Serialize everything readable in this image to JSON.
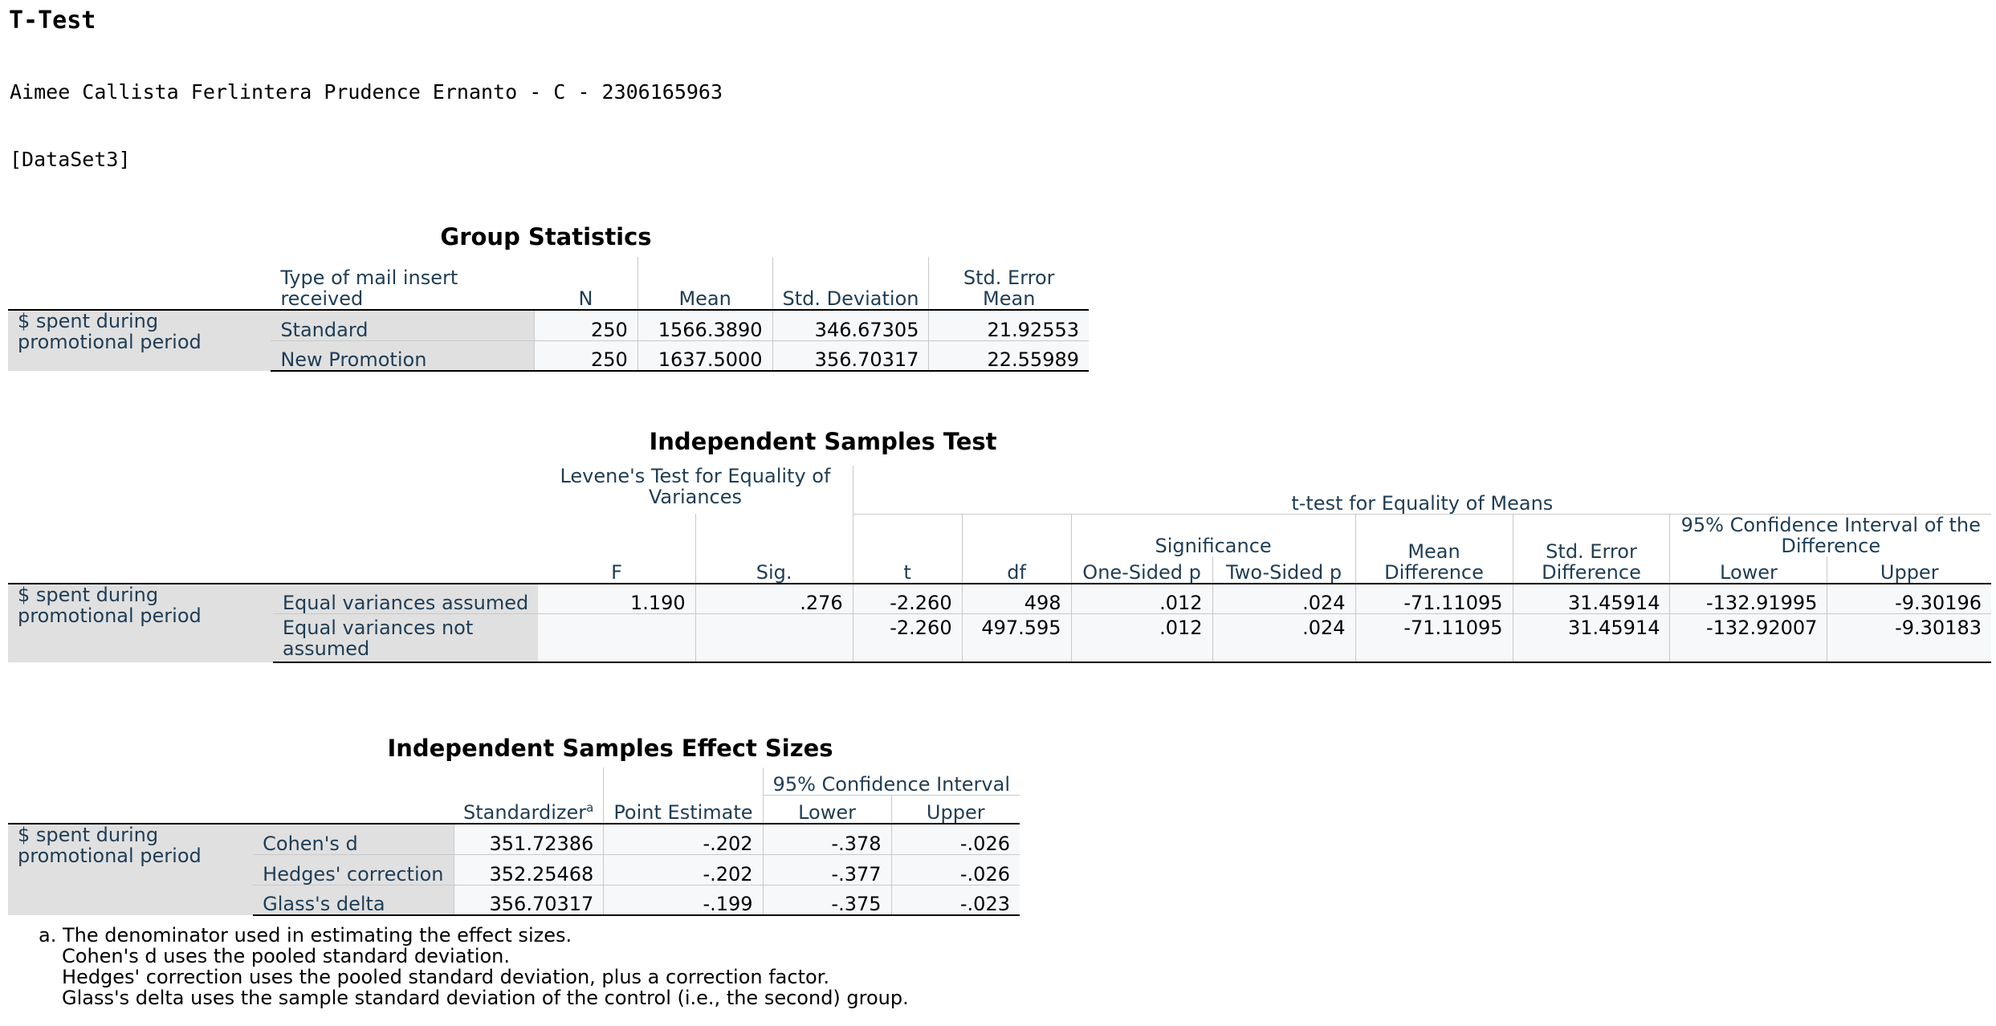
{
  "page_title": "T-Test",
  "author_line": "Aimee Callista Ferlintera Prudence Ernanto - C - 2306165963",
  "dataset_line": "[DataSet3]",
  "group_statistics": {
    "title": "Group Statistics",
    "row_label": "$ spent during promotional period",
    "headers": {
      "group": "Type of mail insert received",
      "n": "N",
      "mean": "Mean",
      "sd": "Std. Deviation",
      "se": "Std. Error Mean"
    },
    "rows": [
      {
        "group": "Standard",
        "n": "250",
        "mean": "1566.3890",
        "sd": "346.67305",
        "se": "21.92553"
      },
      {
        "group": "New Promotion",
        "n": "250",
        "mean": "1637.5000",
        "sd": "356.70317",
        "se": "22.55989"
      }
    ]
  },
  "independent_test": {
    "title": "Independent Samples Test",
    "row_label": "$ spent during promotional period",
    "headers": {
      "levene": "Levene's Test for Equality of Variances",
      "ttest": "t-test for Equality of Means",
      "f": "F",
      "sig": "Sig.",
      "t": "t",
      "df": "df",
      "significance": "Significance",
      "one_sided": "One-Sided p",
      "two_sided": "Two-Sided p",
      "mean_diff": "Mean Difference",
      "se_diff": "Std. Error Difference",
      "ci": "95% Confidence Interval of the Difference",
      "lower": "Lower",
      "upper": "Upper"
    },
    "rows": [
      {
        "label": "Equal variances assumed",
        "f": "1.190",
        "sig": ".276",
        "t": "-2.260",
        "df": "498",
        "one_sided": ".012",
        "two_sided": ".024",
        "mean_diff": "-71.11095",
        "se_diff": "31.45914",
        "lower": "-132.91995",
        "upper": "-9.30196"
      },
      {
        "label": "Equal variances not assumed",
        "f": "",
        "sig": "",
        "t": "-2.260",
        "df": "497.595",
        "one_sided": ".012",
        "two_sided": ".024",
        "mean_diff": "-71.11095",
        "se_diff": "31.45914",
        "lower": "-132.92007",
        "upper": "-9.30183"
      }
    ]
  },
  "effect_sizes": {
    "title": "Independent Samples Effect Sizes",
    "row_label": "$ spent during promotional period",
    "headers": {
      "standardizer": "Standardizer",
      "standardizer_sup": "a",
      "point": "Point Estimate",
      "ci": "95% Confidence Interval",
      "lower": "Lower",
      "upper": "Upper"
    },
    "rows": [
      {
        "label": "Cohen's d",
        "standardizer": "351.72386",
        "point": "-.202",
        "lower": "-.378",
        "upper": "-.026"
      },
      {
        "label": "Hedges' correction",
        "standardizer": "352.25468",
        "point": "-.202",
        "lower": "-.377",
        "upper": "-.026"
      },
      {
        "label": "Glass's delta",
        "standardizer": "356.70317",
        "point": "-.199",
        "lower": "-.375",
        "upper": "-.023"
      }
    ],
    "footnotes": [
      "a. The denominator used in estimating the effect sizes.",
      "Cohen's d uses the pooled standard deviation.",
      "Hedges' correction uses the pooled standard deviation, plus a correction factor.",
      "Glass's delta uses the sample standard deviation of the control (i.e., the second) group."
    ]
  }
}
